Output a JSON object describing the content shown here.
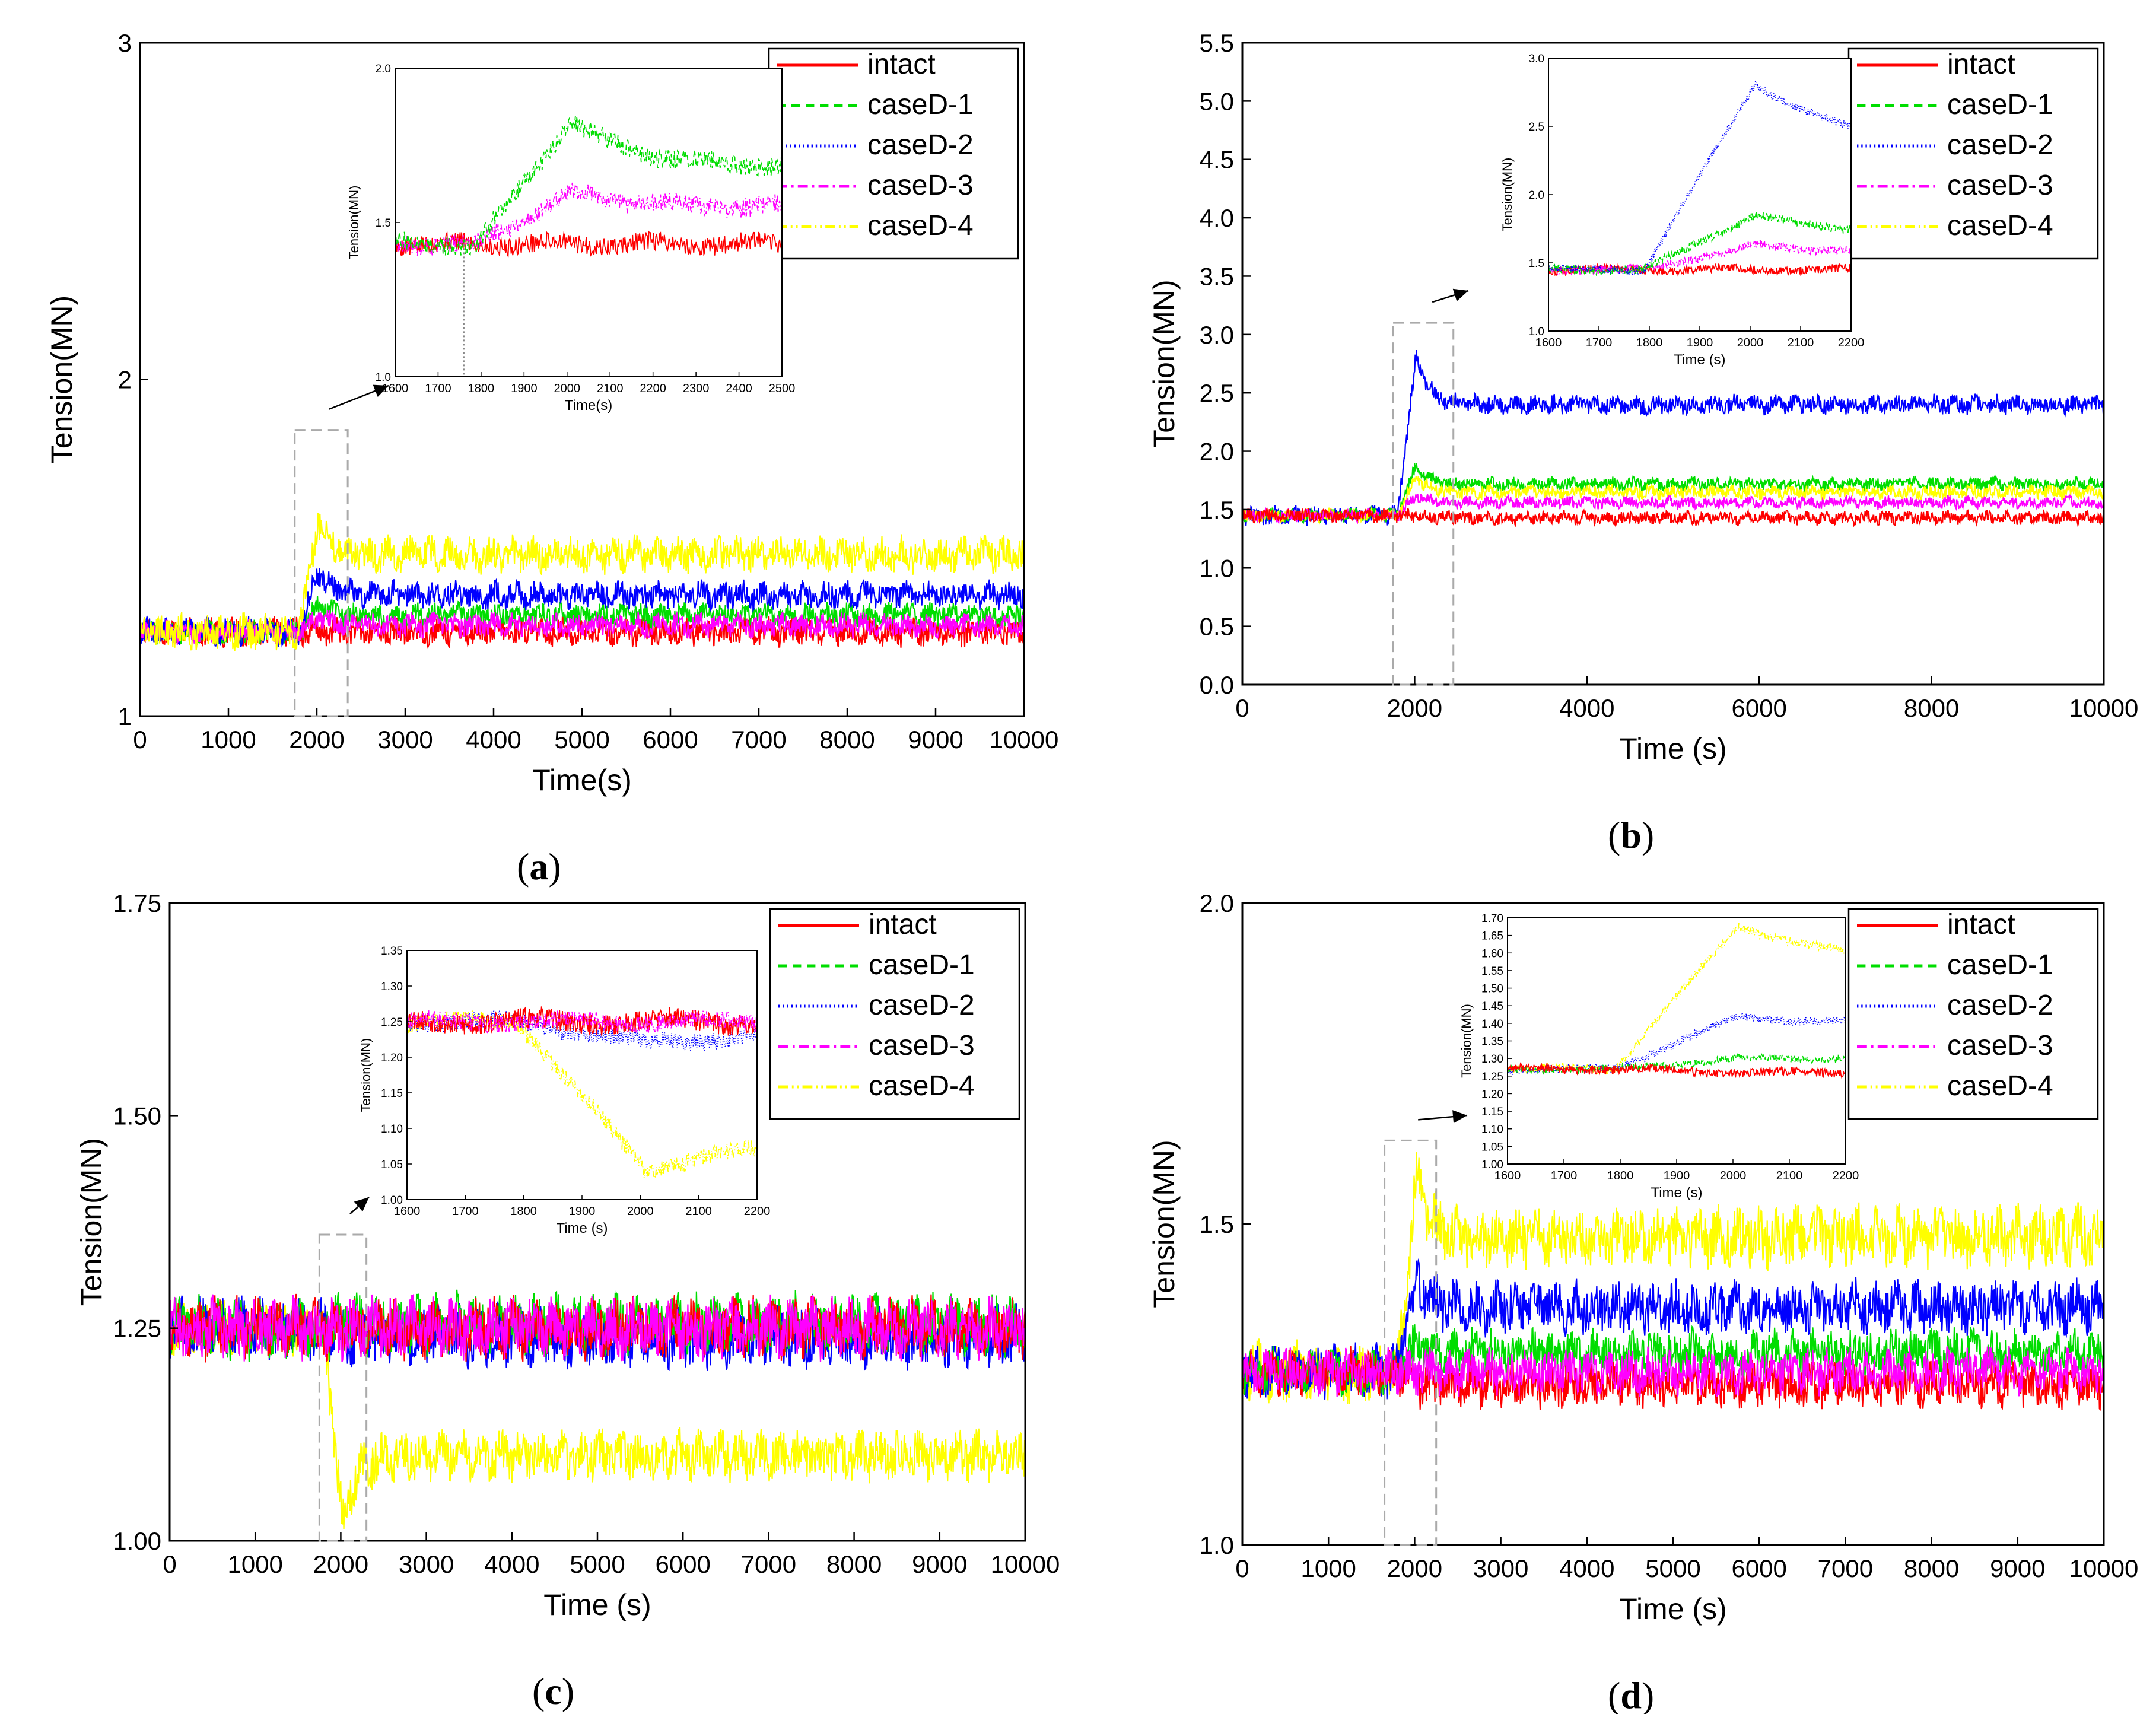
{
  "figure": {
    "background": "#ffffff"
  },
  "series_styles": [
    {
      "name": "intact",
      "color": "#ff0000",
      "dash": "solid"
    },
    {
      "name": "caseD-1",
      "color": "#00dd00",
      "dash": "dashed"
    },
    {
      "name": "caseD-2",
      "color": "#0000ff",
      "dash": "dotted"
    },
    {
      "name": "caseD-3",
      "color": "#ff00ff",
      "dash": "dash-dot"
    },
    {
      "name": "caseD-4",
      "color": "#ffff00",
      "dash": "dash-dot-dot"
    }
  ],
  "chart_data": [
    {
      "panel": "a",
      "label_open": "(",
      "label_letter": "a",
      "label_close": ")",
      "type": "line",
      "xlabel": "Time(s)",
      "ylabel": "Tension(MN)",
      "xlim": [
        0,
        10000
      ],
      "ylim": [
        1,
        3
      ],
      "xticks": [
        "0",
        "1000",
        "2000",
        "3000",
        "4000",
        "5000",
        "6000",
        "7000",
        "8000",
        "9000",
        "10000"
      ],
      "yticks": [
        "1",
        "2",
        "3"
      ],
      "legend": [
        "intact",
        "caseD-1",
        "caseD-2",
        "caseD-3",
        "caseD-4"
      ],
      "legend_position": "top-right",
      "zoom_box_x": [
        1750,
        2350
      ],
      "zoom_box_y": [
        1.0,
        1.85
      ],
      "series": [
        {
          "name": "intact",
          "start": 1.25,
          "end": 1.25,
          "peak": 1.25,
          "amp": 0.035
        },
        {
          "name": "caseD-1",
          "start": 1.25,
          "end": 1.3,
          "peak": 1.33,
          "amp": 0.03
        },
        {
          "name": "caseD-2",
          "start": 1.25,
          "end": 1.36,
          "peak": 1.43,
          "amp": 0.035
        },
        {
          "name": "caseD-3",
          "start": 1.25,
          "end": 1.27,
          "peak": 1.29,
          "amp": 0.03
        },
        {
          "name": "caseD-4",
          "start": 1.25,
          "end": 1.48,
          "peak": 1.58,
          "amp": 0.045
        }
      ],
      "inset": {
        "xlabel": "Time(s)",
        "ylabel": "Tension(MN)",
        "xlim": [
          1600,
          2500
        ],
        "ylim": [
          1.0,
          2.0
        ],
        "xticks": [
          "1600",
          "1700",
          "1800",
          "1900",
          "2000",
          "2100",
          "2200",
          "2300",
          "2400",
          "2500"
        ],
        "yticks": [
          "1.0",
          "1.5",
          "2.0"
        ],
        "vline_x": 1760,
        "series": [
          {
            "name": "intact",
            "start": 1.43,
            "end": 1.43,
            "peak": 1.43,
            "amp": 0.03
          },
          {
            "name": "caseD-3",
            "start": 1.43,
            "end": 1.55,
            "peak": 1.6,
            "amp": 0.03
          },
          {
            "name": "caseD-1",
            "start": 1.43,
            "end": 1.68,
            "peak": 1.83,
            "amp": 0.03
          }
        ]
      }
    },
    {
      "panel": "b",
      "label_open": "(",
      "label_letter": "b",
      "label_close": ")",
      "type": "line",
      "xlabel": "Time (s)",
      "ylabel": "Tension(MN)",
      "xlim": [
        0,
        10000
      ],
      "ylim": [
        0,
        5.5
      ],
      "xticks": [
        "0",
        "2000",
        "4000",
        "6000",
        "8000",
        "10000"
      ],
      "yticks": [
        "0.0",
        "0.5",
        "1.0",
        "1.5",
        "2.0",
        "2.5",
        "3.0",
        "3.5",
        "4.0",
        "4.5",
        "5.0",
        "5.5"
      ],
      "legend": [
        "intact",
        "caseD-1",
        "caseD-2",
        "caseD-3",
        "caseD-4"
      ],
      "legend_position": "top-right",
      "zoom_box_x": [
        1750,
        2450
      ],
      "zoom_box_y": [
        0.0,
        3.1
      ],
      "series": [
        {
          "name": "caseD-2",
          "start": 1.45,
          "end": 2.4,
          "peak": 2.82,
          "amp": 0.07
        },
        {
          "name": "caseD-1",
          "start": 1.45,
          "end": 1.72,
          "peak": 1.88,
          "amp": 0.05
        },
        {
          "name": "caseD-4",
          "start": 1.45,
          "end": 1.65,
          "peak": 1.78,
          "amp": 0.05
        },
        {
          "name": "caseD-3",
          "start": 1.45,
          "end": 1.56,
          "peak": 1.62,
          "amp": 0.045
        },
        {
          "name": "intact",
          "start": 1.45,
          "end": 1.43,
          "peak": 1.45,
          "amp": 0.05
        }
      ],
      "inset": {
        "xlabel": "Time (s)",
        "ylabel": "Tension(MN)",
        "xlim": [
          1600,
          2200
        ],
        "ylim": [
          1.0,
          3.0
        ],
        "xticks": [
          "1600",
          "1700",
          "1800",
          "1900",
          "2000",
          "2100",
          "2200"
        ],
        "yticks": [
          "1.0",
          "1.5",
          "2.0",
          "2.5",
          "3.0"
        ],
        "series": [
          {
            "name": "intact",
            "start": 1.45,
            "end": 1.45,
            "peak": 1.45,
            "amp": 0.03
          },
          {
            "name": "caseD-3",
            "start": 1.45,
            "end": 1.58,
            "peak": 1.63,
            "amp": 0.03
          },
          {
            "name": "caseD-1",
            "start": 1.45,
            "end": 1.72,
            "peak": 1.85,
            "amp": 0.03
          },
          {
            "name": "caseD-2",
            "start": 1.45,
            "end": 2.4,
            "peak": 2.82,
            "amp": 0.03
          }
        ]
      }
    },
    {
      "panel": "c",
      "label_open": "(",
      "label_letter": "c",
      "label_close": ")",
      "type": "line",
      "xlabel": "Time (s)",
      "ylabel": "Tension(MN)",
      "xlim": [
        0,
        10000
      ],
      "ylim": [
        1.0,
        1.75
      ],
      "xticks": [
        "0",
        "1000",
        "2000",
        "3000",
        "4000",
        "5000",
        "6000",
        "7000",
        "8000",
        "9000",
        "10000"
      ],
      "yticks": [
        "1.00",
        "1.25",
        "1.50",
        "1.75"
      ],
      "legend": [
        "intact",
        "caseD-1",
        "caseD-2",
        "caseD-3",
        "caseD-4"
      ],
      "legend_position": "top-right",
      "zoom_box_x": [
        1750,
        2300
      ],
      "zoom_box_y": [
        1.0,
        1.36
      ],
      "series": [
        {
          "name": "caseD-4",
          "start": 1.25,
          "end": 1.1,
          "peak": 1.02,
          "amp": 0.025
        },
        {
          "name": "caseD-2",
          "start": 1.25,
          "end": 1.24,
          "peak": 1.24,
          "amp": 0.03
        },
        {
          "name": "caseD-1",
          "start": 1.25,
          "end": 1.255,
          "peak": 1.255,
          "amp": 0.03
        },
        {
          "name": "intact",
          "start": 1.25,
          "end": 1.25,
          "peak": 1.25,
          "amp": 0.03
        },
        {
          "name": "caseD-3",
          "start": 1.25,
          "end": 1.25,
          "peak": 1.25,
          "amp": 0.03
        }
      ],
      "inset": {
        "xlabel": "Time (s)",
        "ylabel": "Tension(MN)",
        "xlim": [
          1600,
          2200
        ],
        "ylim": [
          1.0,
          1.35
        ],
        "xticks": [
          "1600",
          "1700",
          "1800",
          "1900",
          "2000",
          "2100",
          "2200"
        ],
        "yticks": [
          "1.00",
          "1.05",
          "1.10",
          "1.15",
          "1.20",
          "1.25",
          "1.30",
          "1.35"
        ],
        "series": [
          {
            "name": "caseD-4",
            "start": 1.25,
            "end": 1.08,
            "peak": 1.04,
            "amp": 0.012
          },
          {
            "name": "caseD-2",
            "start": 1.25,
            "end": 1.23,
            "peak": 1.22,
            "amp": 0.012
          },
          {
            "name": "intact",
            "start": 1.25,
            "end": 1.25,
            "peak": 1.25,
            "amp": 0.015
          },
          {
            "name": "caseD-3",
            "start": 1.25,
            "end": 1.25,
            "peak": 1.25,
            "amp": 0.012
          }
        ]
      }
    },
    {
      "panel": "d",
      "label_open": "(",
      "label_letter": "d",
      "label_close": ")",
      "type": "line",
      "xlabel": "Time (s)",
      "ylabel": "Tension(MN)",
      "xlim": [
        0,
        10000
      ],
      "ylim": [
        1.0,
        2.0
      ],
      "xticks": [
        "0",
        "1000",
        "2000",
        "3000",
        "4000",
        "5000",
        "6000",
        "7000",
        "8000",
        "9000",
        "10000"
      ],
      "yticks": [
        "1.0",
        "1.5",
        "2.0"
      ],
      "legend": [
        "intact",
        "caseD-1",
        "caseD-2",
        "caseD-3",
        "caseD-4"
      ],
      "legend_position": "top-right",
      "zoom_box_x": [
        1650,
        2250
      ],
      "zoom_box_y": [
        1.0,
        1.63
      ],
      "series": [
        {
          "name": "caseD-4",
          "start": 1.27,
          "end": 1.48,
          "peak": 1.57,
          "amp": 0.04
        },
        {
          "name": "caseD-2",
          "start": 1.27,
          "end": 1.37,
          "peak": 1.41,
          "amp": 0.035
        },
        {
          "name": "caseD-1",
          "start": 1.27,
          "end": 1.3,
          "peak": 1.31,
          "amp": 0.03
        },
        {
          "name": "intact",
          "start": 1.27,
          "end": 1.25,
          "peak": 1.25,
          "amp": 0.03
        },
        {
          "name": "caseD-3",
          "start": 1.27,
          "end": 1.27,
          "peak": 1.27,
          "amp": 0.03
        }
      ],
      "inset": {
        "xlabel": "Time (s)",
        "ylabel": "Tension(MN)",
        "xlim": [
          1600,
          2200
        ],
        "ylim": [
          1.0,
          1.7
        ],
        "xticks": [
          "1600",
          "1700",
          "1800",
          "1900",
          "2000",
          "2100",
          "2200"
        ],
        "yticks": [
          "1.00",
          "1.05",
          "1.10",
          "1.15",
          "1.20",
          "1.25",
          "1.30",
          "1.35",
          "1.40",
          "1.45",
          "1.50",
          "1.55",
          "1.60",
          "1.65",
          "1.70"
        ],
        "series": [
          {
            "name": "caseD-4",
            "start": 1.27,
            "end": 1.58,
            "peak": 1.68,
            "amp": 0.012
          },
          {
            "name": "caseD-2",
            "start": 1.27,
            "end": 1.4,
            "peak": 1.42,
            "amp": 0.012
          },
          {
            "name": "caseD-1",
            "start": 1.27,
            "end": 1.3,
            "peak": 1.3,
            "amp": 0.01
          },
          {
            "name": "intact",
            "start": 1.27,
            "end": 1.26,
            "peak": 1.26,
            "amp": 0.012
          }
        ]
      }
    }
  ]
}
